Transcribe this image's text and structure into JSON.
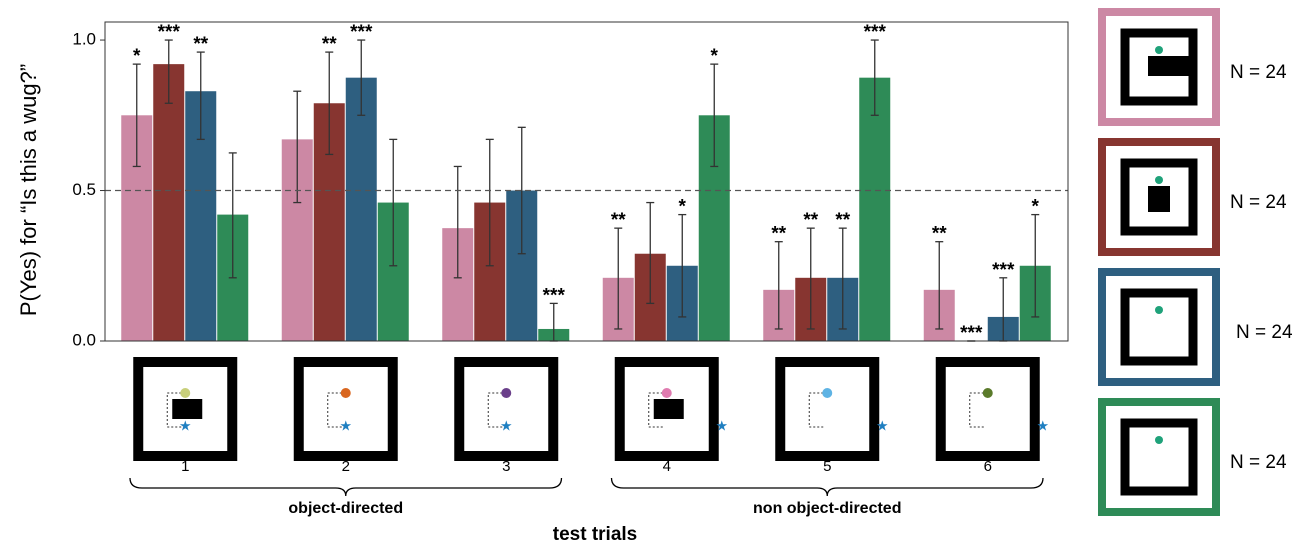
{
  "chart_data": {
    "type": "bar",
    "y_label": "P(Yes) for “Is this a wug?”",
    "x_label": "test trials",
    "categories": [
      "1",
      "2",
      "3",
      "4",
      "5",
      "6"
    ],
    "groups": [
      {
        "label": "object-directed",
        "from": 0,
        "to": 2
      },
      {
        "label": "non object-directed",
        "from": 3,
        "to": 5
      }
    ],
    "ylim": [
      0,
      1.06
    ],
    "yticks": [
      {
        "value": 0,
        "label": "0.0"
      },
      {
        "value": 0.5,
        "label": "0.5"
      },
      {
        "value": 1,
        "label": "1.0"
      }
    ],
    "reference_line": 0.5,
    "series": [
      {
        "color": "#cc88a4",
        "n_label": "N = 24",
        "values": [
          0.75,
          0.67,
          0.375,
          0.21,
          0.17,
          0.17
        ],
        "lower": [
          0.58,
          0.46,
          0.21,
          0.04,
          0.04,
          0.04
        ],
        "upper": [
          0.92,
          0.83,
          0.58,
          0.375,
          0.33,
          0.33
        ],
        "stars": [
          "*",
          null,
          null,
          "**",
          "**",
          "**"
        ]
      },
      {
        "color": "#873530",
        "n_label": "N = 24",
        "values": [
          0.92,
          0.79,
          0.46,
          0.29,
          0.21,
          0
        ],
        "lower": [
          0.79,
          0.62,
          0.25,
          0.125,
          0.04,
          0
        ],
        "upper": [
          1.0,
          0.96,
          0.67,
          0.46,
          0.375,
          0
        ],
        "stars": [
          "***",
          "**",
          null,
          null,
          "**",
          "***"
        ]
      },
      {
        "color": "#2e5f80",
        "n_label": "N = 24",
        "values": [
          0.83,
          0.875,
          0.5,
          0.25,
          0.21,
          0.08
        ],
        "lower": [
          0.67,
          0.75,
          0.29,
          0.08,
          0.04,
          0
        ],
        "upper": [
          0.96,
          1.0,
          0.71,
          0.42,
          0.375,
          0.21
        ],
        "stars": [
          "**",
          "***",
          null,
          "*",
          "**",
          "***"
        ]
      },
      {
        "color": "#2e8b57",
        "n_label": "N = 24",
        "values": [
          0.42,
          0.46,
          0.04,
          0.75,
          0.875,
          0.25
        ],
        "lower": [
          0.21,
          0.25,
          0,
          0.58,
          0.75,
          0.08
        ],
        "upper": [
          0.625,
          0.67,
          0.125,
          0.92,
          1.0,
          0.42
        ],
        "stars": [
          null,
          null,
          "***",
          "*",
          "***",
          "*"
        ]
      }
    ]
  }
}
